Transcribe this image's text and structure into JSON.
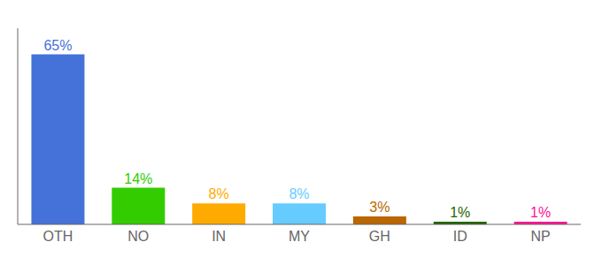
{
  "chart_data": {
    "type": "bar",
    "categories": [
      "OTH",
      "NO",
      "IN",
      "MY",
      "GH",
      "ID",
      "NP"
    ],
    "values": [
      65,
      14,
      8,
      8,
      3,
      1,
      1
    ],
    "value_labels": [
      "65%",
      "14%",
      "8%",
      "8%",
      "3%",
      "1%",
      "1%"
    ],
    "colors": [
      "#4472d9",
      "#33cc00",
      "#ffaa00",
      "#66ccff",
      "#bb6600",
      "#226600",
      "#ff1493"
    ],
    "ylim": [
      0,
      75
    ],
    "grid": false,
    "data_labels": true,
    "tick_labels": "x"
  }
}
